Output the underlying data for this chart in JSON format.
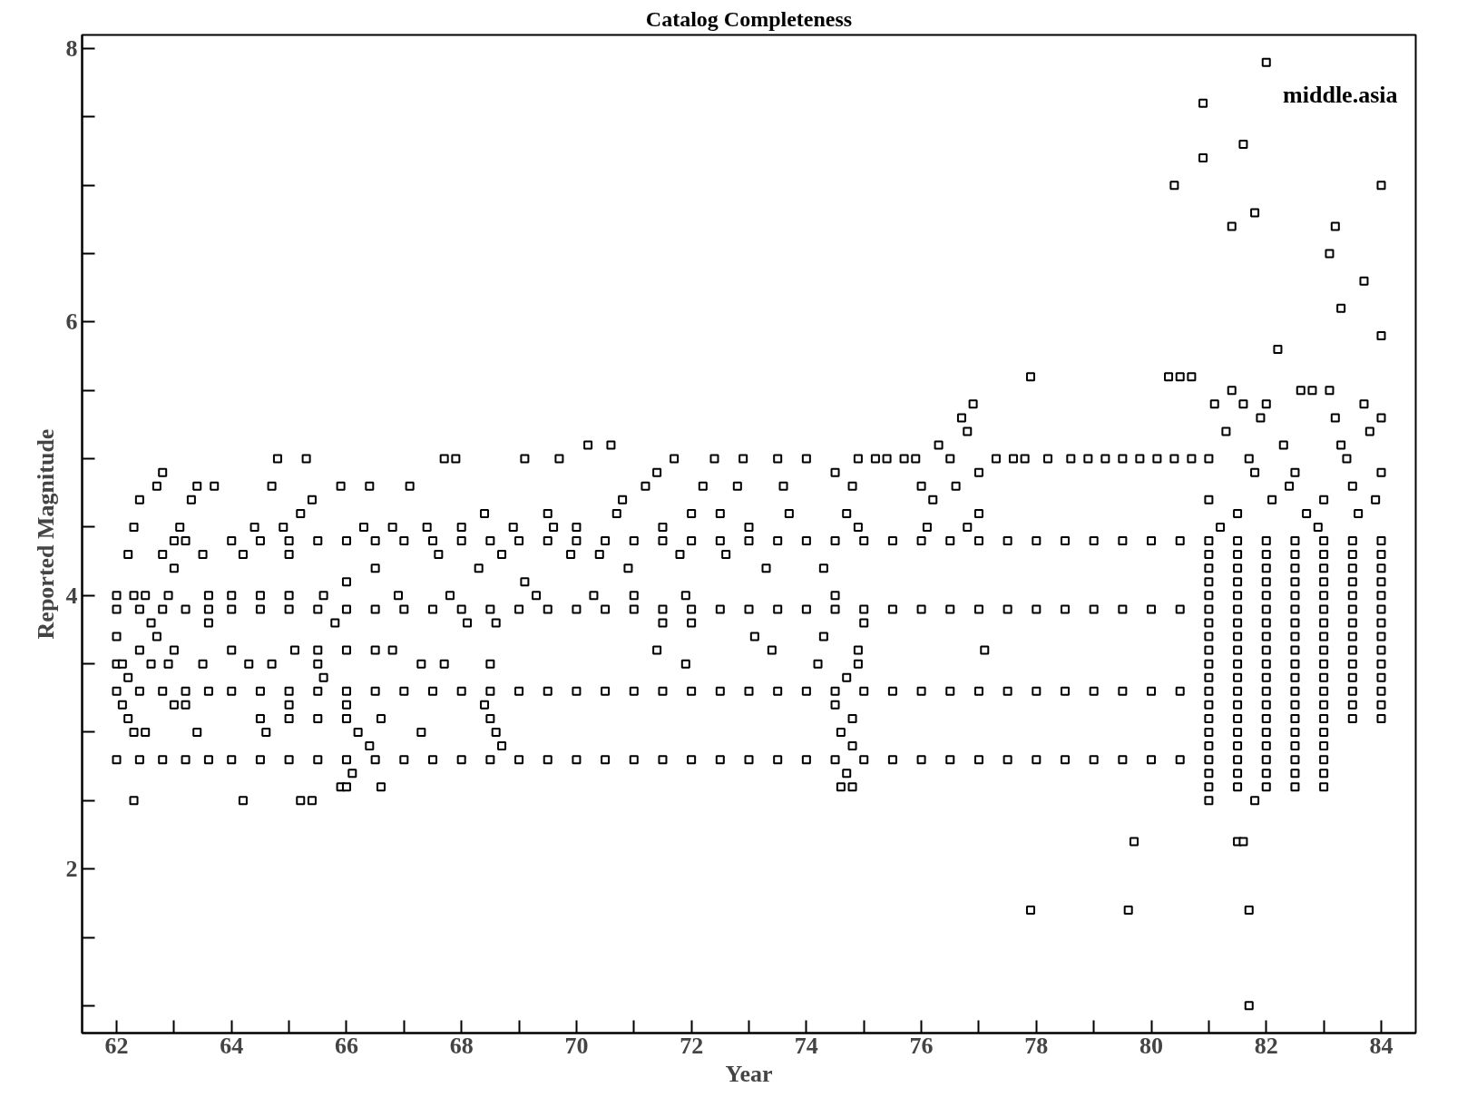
{
  "chart_data": {
    "type": "scatter",
    "title": "Catalog Completeness",
    "xlabel": "Year",
    "ylabel": "Reported Magnitude",
    "annotations": [
      "middle.asia"
    ],
    "marker": "square",
    "xlim": [
      61.4,
      84.6
    ],
    "ylim": [
      0.8,
      8.1
    ],
    "xticks": [
      62,
      {
        "value": 63,
        "label": null
      },
      64,
      {
        "value": 65,
        "label": null
      },
      66,
      {
        "value": 67,
        "label": null
      },
      68,
      {
        "value": 69,
        "label": null
      },
      70,
      {
        "value": 71,
        "label": null
      },
      72,
      {
        "value": 73,
        "label": null
      },
      74,
      {
        "value": 75,
        "label": null
      },
      76,
      {
        "value": 77,
        "label": null
      },
      78,
      {
        "value": 79,
        "label": null
      },
      80,
      {
        "value": 81,
        "label": null
      },
      82,
      {
        "value": 83,
        "label": null
      },
      84
    ],
    "yticks": [
      {
        "value": 1,
        "label": null
      },
      {
        "value": 1.5,
        "label": null
      },
      2,
      {
        "value": 2.5,
        "label": null
      },
      {
        "value": 3,
        "label": null
      },
      {
        "value": 3.5,
        "label": null
      },
      4,
      {
        "value": 4.5,
        "label": null
      },
      {
        "value": 5,
        "label": null
      },
      {
        "value": 5.5,
        "label": null
      },
      6,
      {
        "value": 6.5,
        "label": null
      },
      {
        "value": 7,
        "label": null
      },
      {
        "value": 7.5,
        "label": null
      },
      8
    ],
    "series": [
      {
        "color": "#000000",
        "x": [
          81.7
        ],
        "values": [
          1.0
        ]
      },
      {
        "color": "#000000",
        "x": [
          77.9,
          79.6,
          81.7
        ],
        "values": [
          1.7,
          1.7,
          1.7
        ]
      },
      {
        "color": "#000000",
        "x": [
          79.7,
          81.5,
          81.6
        ],
        "values": [
          2.2,
          2.2,
          2.2
        ]
      },
      {
        "color": "#000000",
        "x": [
          62.3,
          64.2,
          65.2,
          65.4,
          81.0,
          81.8
        ],
        "values": [
          2.5,
          2.5,
          2.5,
          2.5,
          2.5,
          2.5
        ]
      },
      {
        "color": "#000000",
        "x": [
          65.9,
          66.0,
          66.6,
          74.6,
          74.8,
          81,
          81.5,
          82,
          82.5,
          83
        ],
        "values": [
          2.6,
          2.6,
          2.6,
          2.6,
          2.6,
          2.6,
          2.6,
          2.6,
          2.6,
          2.6
        ]
      },
      {
        "color": "#000000",
        "x": [
          66.1,
          74.7,
          81,
          81.5,
          82,
          82.5,
          83
        ],
        "values": [
          2.7,
          2.7,
          2.7,
          2.7,
          2.7,
          2.7,
          2.7
        ]
      },
      {
        "color": "#000000",
        "x": [
          62,
          62.4,
          62.8,
          63.2,
          63.6,
          64,
          64.5,
          65,
          65.5,
          66,
          66.5,
          67,
          67.5,
          68,
          68.5,
          69,
          69.5,
          70,
          70.5,
          71,
          71.5,
          72,
          72.5,
          73,
          73.5,
          74,
          74.5,
          75,
          75.5,
          76,
          76.5,
          77,
          77.5,
          78,
          78.5,
          79,
          79.5,
          80,
          80.5,
          81,
          81.5,
          82,
          82.5,
          83
        ],
        "values": [
          2.8,
          2.8,
          2.8,
          2.8,
          2.8,
          2.8,
          2.8,
          2.8,
          2.8,
          2.8,
          2.8,
          2.8,
          2.8,
          2.8,
          2.8,
          2.8,
          2.8,
          2.8,
          2.8,
          2.8,
          2.8,
          2.8,
          2.8,
          2.8,
          2.8,
          2.8,
          2.8,
          2.8,
          2.8,
          2.8,
          2.8,
          2.8,
          2.8,
          2.8,
          2.8,
          2.8,
          2.8,
          2.8,
          2.8,
          2.8,
          2.8,
          2.8,
          2.8,
          2.8
        ]
      },
      {
        "color": "#000000",
        "x": [
          66.4,
          68.7,
          74.8,
          81,
          81.5,
          82,
          82.5,
          83
        ],
        "values": [
          2.9,
          2.9,
          2.9,
          2.9,
          2.9,
          2.9,
          2.9,
          2.9
        ]
      },
      {
        "color": "#000000",
        "x": [
          62.3,
          62.5,
          63.4,
          64.6,
          66.2,
          67.3,
          68.6,
          74.6,
          81,
          81.5,
          82,
          82.5,
          83
        ],
        "values": [
          3.0,
          3.0,
          3.0,
          3.0,
          3.0,
          3.0,
          3.0,
          3.0,
          3.0,
          3.0,
          3.0,
          3.0,
          3.0
        ]
      },
      {
        "color": "#000000",
        "x": [
          62.2,
          64.5,
          65,
          65.5,
          66,
          66.6,
          68.5,
          74.8,
          81,
          81.5,
          82,
          82.5,
          83,
          83.5,
          84
        ],
        "values": [
          3.1,
          3.1,
          3.1,
          3.1,
          3.1,
          3.1,
          3.1,
          3.1,
          3.1,
          3.1,
          3.1,
          3.1,
          3.1,
          3.1,
          3.1
        ]
      },
      {
        "color": "#000000",
        "x": [
          62.1,
          63.0,
          63.2,
          65.0,
          66.0,
          68.4,
          74.5,
          81,
          81.5,
          82,
          82.5,
          83,
          83.5,
          84
        ],
        "values": [
          3.2,
          3.2,
          3.2,
          3.2,
          3.2,
          3.2,
          3.2,
          3.2,
          3.2,
          3.2,
          3.2,
          3.2,
          3.2,
          3.2
        ]
      },
      {
        "color": "#000000",
        "x": [
          62,
          62.4,
          62.8,
          63.2,
          63.6,
          64,
          64.5,
          65,
          65.5,
          66,
          66.5,
          67,
          67.5,
          68,
          68.5,
          69,
          69.5,
          70,
          70.5,
          71,
          71.5,
          72,
          72.5,
          73,
          73.5,
          74,
          74.5,
          75,
          75.5,
          76,
          76.5,
          77,
          77.5,
          78,
          78.5,
          79,
          79.5,
          80,
          80.5,
          81,
          81.5,
          82,
          82.5,
          83,
          83.5,
          84
        ],
        "values": [
          3.3,
          3.3,
          3.3,
          3.3,
          3.3,
          3.3,
          3.3,
          3.3,
          3.3,
          3.3,
          3.3,
          3.3,
          3.3,
          3.3,
          3.3,
          3.3,
          3.3,
          3.3,
          3.3,
          3.3,
          3.3,
          3.3,
          3.3,
          3.3,
          3.3,
          3.3,
          3.3,
          3.3,
          3.3,
          3.3,
          3.3,
          3.3,
          3.3,
          3.3,
          3.3,
          3.3,
          3.3,
          3.3,
          3.3,
          3.3,
          3.3,
          3.3,
          3.3,
          3.3,
          3.3,
          3.3
        ]
      },
      {
        "color": "#000000",
        "x": [
          62.2,
          65.6,
          74.7,
          81,
          81.5,
          82,
          82.5,
          83,
          83.5,
          84
        ],
        "values": [
          3.4,
          3.4,
          3.4,
          3.4,
          3.4,
          3.4,
          3.4,
          3.4,
          3.4,
          3.4
        ]
      },
      {
        "color": "#000000",
        "x": [
          62.0,
          62.1,
          62.6,
          62.9,
          63.5,
          64.3,
          64.7,
          65.5,
          67.3,
          67.7,
          68.5,
          71.9,
          74.2,
          74.9,
          81,
          81.5,
          82,
          82.5,
          83,
          83.5,
          84
        ],
        "values": [
          3.5,
          3.5,
          3.5,
          3.5,
          3.5,
          3.5,
          3.5,
          3.5,
          3.5,
          3.5,
          3.5,
          3.5,
          3.5,
          3.5,
          3.5,
          3.5,
          3.5,
          3.5,
          3.5,
          3.5,
          3.5
        ]
      },
      {
        "color": "#000000",
        "x": [
          62.4,
          63.0,
          64.0,
          65.1,
          65.5,
          66,
          66.5,
          66.8,
          71.4,
          73.4,
          74.9,
          77.1,
          81,
          81.5,
          82,
          82.5,
          83,
          83.5,
          84
        ],
        "values": [
          3.6,
          3.6,
          3.6,
          3.6,
          3.6,
          3.6,
          3.6,
          3.6,
          3.6,
          3.6,
          3.6,
          3.6,
          3.6,
          3.6,
          3.6,
          3.6,
          3.6,
          3.6,
          3.6
        ]
      },
      {
        "color": "#000000",
        "x": [
          62.0,
          62.7,
          73.1,
          74.3,
          81,
          81.5,
          82,
          82.5,
          83,
          83.5,
          84
        ],
        "values": [
          3.7,
          3.7,
          3.7,
          3.7,
          3.7,
          3.7,
          3.7,
          3.7,
          3.7,
          3.7,
          3.7
        ]
      },
      {
        "color": "#000000",
        "x": [
          62.6,
          63.6,
          65.8,
          68.1,
          68.6,
          71.5,
          72.0,
          75.0,
          81,
          81.5,
          82,
          82.5,
          83,
          83.5,
          84
        ],
        "values": [
          3.8,
          3.8,
          3.8,
          3.8,
          3.8,
          3.8,
          3.8,
          3.8,
          3.8,
          3.8,
          3.8,
          3.8,
          3.8,
          3.8,
          3.8
        ]
      },
      {
        "color": "#000000",
        "x": [
          62,
          62.4,
          62.8,
          63.2,
          63.6,
          64,
          64.5,
          65,
          65.5,
          66,
          66.5,
          67,
          67.5,
          68,
          68.5,
          69,
          69.5,
          70,
          70.5,
          71,
          71.5,
          72,
          72.5,
          73,
          73.5,
          74,
          74.5,
          75,
          75.5,
          76,
          76.5,
          77,
          77.5,
          78,
          78.5,
          79,
          79.5,
          80,
          80.5,
          81,
          81.5,
          82,
          82.5,
          83,
          83.5,
          84
        ],
        "values": [
          3.9,
          3.9,
          3.9,
          3.9,
          3.9,
          3.9,
          3.9,
          3.9,
          3.9,
          3.9,
          3.9,
          3.9,
          3.9,
          3.9,
          3.9,
          3.9,
          3.9,
          3.9,
          3.9,
          3.9,
          3.9,
          3.9,
          3.9,
          3.9,
          3.9,
          3.9,
          3.9,
          3.9,
          3.9,
          3.9,
          3.9,
          3.9,
          3.9,
          3.9,
          3.9,
          3.9,
          3.9,
          3.9,
          3.9,
          3.9,
          3.9,
          3.9,
          3.9,
          3.9,
          3.9,
          3.9
        ]
      },
      {
        "color": "#000000",
        "x": [
          62.0,
          62.3,
          62.5,
          62.9,
          63.6,
          64.0,
          64.5,
          65.0,
          65.6,
          66.9,
          67.8,
          69.3,
          70.3,
          71.0,
          71.9,
          74.5,
          81,
          81.5,
          82,
          82.5,
          83,
          83.5,
          84
        ],
        "values": [
          4.0,
          4.0,
          4.0,
          4.0,
          4.0,
          4.0,
          4.0,
          4.0,
          4.0,
          4.0,
          4.0,
          4.0,
          4.0,
          4.0,
          4.0,
          4.0,
          4.0,
          4.0,
          4.0,
          4.0,
          4.0,
          4.0,
          4.0
        ]
      },
      {
        "color": "#000000",
        "x": [
          66.0,
          69.1,
          81,
          81.5,
          82,
          82.5,
          83,
          83.5,
          84
        ],
        "values": [
          4.1,
          4.1,
          4.1,
          4.1,
          4.1,
          4.1,
          4.1,
          4.1,
          4.1
        ]
      },
      {
        "color": "#000000",
        "x": [
          63.0,
          66.5,
          68.3,
          70.9,
          73.3,
          74.3,
          81,
          81.5,
          82,
          82.5,
          83,
          83.5,
          84
        ],
        "values": [
          4.2,
          4.2,
          4.2,
          4.2,
          4.2,
          4.2,
          4.2,
          4.2,
          4.2,
          4.2,
          4.2,
          4.2,
          4.2
        ]
      },
      {
        "color": "#000000",
        "x": [
          62.2,
          62.8,
          63.5,
          64.2,
          65.0,
          67.6,
          68.7,
          69.9,
          70.4,
          71.8,
          72.6,
          81,
          81.5,
          82,
          82.5,
          83,
          83.5,
          84
        ],
        "values": [
          4.3,
          4.3,
          4.3,
          4.3,
          4.3,
          4.3,
          4.3,
          4.3,
          4.3,
          4.3,
          4.3,
          4.3,
          4.3,
          4.3,
          4.3,
          4.3,
          4.3,
          4.3
        ]
      },
      {
        "color": "#000000",
        "x": [
          63.0,
          63.2,
          64,
          64.5,
          65,
          65.5,
          66,
          66.5,
          67,
          67.5,
          68,
          68.5,
          69,
          69.5,
          70,
          70.5,
          71,
          71.5,
          72,
          72.5,
          73,
          73.5,
          74,
          74.5,
          75,
          75.5,
          76,
          76.5,
          77,
          77.5,
          78,
          78.5,
          79,
          79.5,
          80,
          80.5,
          81,
          81.5,
          82,
          82.5,
          83,
          83.5,
          84
        ],
        "values": [
          4.4,
          4.4,
          4.4,
          4.4,
          4.4,
          4.4,
          4.4,
          4.4,
          4.4,
          4.4,
          4.4,
          4.4,
          4.4,
          4.4,
          4.4,
          4.4,
          4.4,
          4.4,
          4.4,
          4.4,
          4.4,
          4.4,
          4.4,
          4.4,
          4.4,
          4.4,
          4.4,
          4.4,
          4.4,
          4.4,
          4.4,
          4.4,
          4.4,
          4.4,
          4.4,
          4.4,
          4.4,
          4.4,
          4.4,
          4.4,
          4.4,
          4.4,
          4.4
        ]
      },
      {
        "color": "#000000",
        "x": [
          62.3,
          63.1,
          64.4,
          64.9,
          66.3,
          66.8,
          67.4,
          68.0,
          68.9,
          69.6,
          70.0,
          71.5,
          73.0,
          74.9,
          76.1,
          76.8,
          81.2,
          82.9
        ],
        "values": [
          4.5,
          4.5,
          4.5,
          4.5,
          4.5,
          4.5,
          4.5,
          4.5,
          4.5,
          4.5,
          4.5,
          4.5,
          4.5,
          4.5,
          4.5,
          4.5,
          4.5,
          4.5
        ]
      },
      {
        "color": "#000000",
        "x": [
          65.2,
          68.4,
          69.5,
          70.7,
          72.0,
          72.5,
          73.7,
          74.7,
          77.0,
          81.5,
          82.7,
          83.6
        ],
        "values": [
          4.6,
          4.6,
          4.6,
          4.6,
          4.6,
          4.6,
          4.6,
          4.6,
          4.6,
          4.6,
          4.6,
          4.6
        ]
      },
      {
        "color": "#000000",
        "x": [
          62.4,
          63.3,
          65.4,
          70.8,
          76.2,
          81.0,
          82.1,
          83.0,
          83.9
        ],
        "values": [
          4.7,
          4.7,
          4.7,
          4.7,
          4.7,
          4.7,
          4.7,
          4.7,
          4.7
        ]
      },
      {
        "color": "#000000",
        "x": [
          62.7,
          63.4,
          63.7,
          64.7,
          65.9,
          66.4,
          67.1,
          71.2,
          72.2,
          72.8,
          73.6,
          74.8,
          76.0,
          76.6,
          82.4,
          83.5
        ],
        "values": [
          4.8,
          4.8,
          4.8,
          4.8,
          4.8,
          4.8,
          4.8,
          4.8,
          4.8,
          4.8,
          4.8,
          4.8,
          4.8,
          4.8,
          4.8,
          4.8
        ]
      },
      {
        "color": "#000000",
        "x": [
          62.8,
          71.4,
          74.5,
          77.0,
          81.8,
          82.5,
          84.0
        ],
        "values": [
          4.9,
          4.9,
          4.9,
          4.9,
          4.9,
          4.9,
          4.9
        ]
      },
      {
        "color": "#000000",
        "x": [
          64.8,
          65.3,
          67.7,
          67.9,
          69.1,
          69.7,
          71.7,
          72.4,
          72.9,
          73.5,
          74.0,
          74.9,
          75.2,
          75.4,
          75.7,
          75.9,
          76.5,
          77.3,
          77.6,
          77.8,
          78.2,
          78.6,
          78.9,
          79.2,
          79.5,
          79.8,
          80.1,
          80.4,
          80.7,
          81.0,
          81.7,
          83.4
        ],
        "values": [
          5.0,
          5.0,
          5.0,
          5.0,
          5.0,
          5.0,
          5.0,
          5.0,
          5.0,
          5.0,
          5.0,
          5.0,
          5.0,
          5.0,
          5.0,
          5.0,
          5.0,
          5.0,
          5.0,
          5.0,
          5.0,
          5.0,
          5.0,
          5.0,
          5.0,
          5.0,
          5.0,
          5.0,
          5.0,
          5.0,
          5.0,
          5.0
        ]
      },
      {
        "color": "#000000",
        "x": [
          70.2,
          70.6,
          76.3,
          82.3,
          83.3
        ],
        "values": [
          5.1,
          5.1,
          5.1,
          5.1,
          5.1
        ]
      },
      {
        "color": "#000000",
        "x": [
          76.8,
          81.3,
          83.8
        ],
        "values": [
          5.2,
          5.2,
          5.2
        ]
      },
      {
        "color": "#000000",
        "x": [
          76.7,
          81.9,
          83.2,
          84.0
        ],
        "values": [
          5.3,
          5.3,
          5.3,
          5.3
        ]
      },
      {
        "color": "#000000",
        "x": [
          76.9,
          81.1,
          81.6,
          82.0,
          83.7
        ],
        "values": [
          5.4,
          5.4,
          5.4,
          5.4,
          5.4
        ]
      },
      {
        "color": "#000000",
        "x": [
          81.4,
          82.6,
          82.8,
          83.1
        ],
        "values": [
          5.5,
          5.5,
          5.5,
          5.5
        ]
      },
      {
        "color": "#000000",
        "x": [
          77.9,
          80.3,
          80.5,
          80.7
        ],
        "values": [
          5.6,
          5.6,
          5.6,
          5.6
        ]
      },
      {
        "color": "#000000",
        "x": [
          82.2,
          84.0,
          83.3,
          83.7,
          83.1
        ],
        "values": [
          5.8,
          5.9,
          6.1,
          6.3,
          6.5
        ]
      },
      {
        "color": "#000000",
        "x": [
          81.4,
          83.2,
          81.8,
          80.4,
          84.0,
          80.9,
          81.6,
          80.9,
          82.0
        ],
        "values": [
          6.7,
          6.7,
          6.8,
          7.0,
          7.0,
          7.2,
          7.3,
          7.6,
          7.9
        ]
      }
    ]
  }
}
